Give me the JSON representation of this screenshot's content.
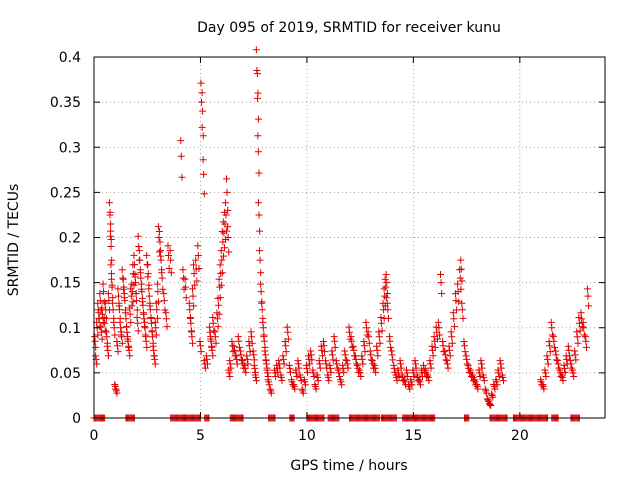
{
  "chart_data": {
    "type": "scatter",
    "title": "Day 095 of 2019, SRMTID for receiver kunu",
    "xlabel": "GPS time / hours",
    "ylabel": "SRMTID / TECUs",
    "xlim": [
      0,
      24
    ],
    "ylim": [
      0,
      0.4
    ],
    "xticks": [
      0,
      5,
      10,
      15,
      20
    ],
    "xtick_labels": [
      "0",
      "5",
      "10",
      "15",
      "20"
    ],
    "yticks": [
      0,
      0.05,
      0.1,
      0.15,
      0.2,
      0.25,
      0.3,
      0.35,
      0.4
    ],
    "ytick_labels": [
      "0",
      "0.05",
      "0.1",
      "0.15",
      "0.2",
      "0.25",
      "0.3",
      "0.35",
      "0.4"
    ],
    "grid": true,
    "marker": "plus",
    "color": "#e00000",
    "series": [
      {
        "name": "SRMTID",
        "points": [
          [
            0.05,
            0.085
          ],
          [
            0.1,
            0.065
          ],
          [
            0.15,
            0.1
          ],
          [
            0.2,
            0.12
          ],
          [
            0.25,
            0.11
          ],
          [
            0.3,
            0.13
          ],
          [
            0.35,
            0.095
          ],
          [
            0.4,
            0.115
          ],
          [
            0.45,
            0.14
          ],
          [
            0.5,
            0.105
          ],
          [
            0.55,
            0.12
          ],
          [
            0.6,
            0.09
          ],
          [
            0.65,
            0.075
          ],
          [
            0.7,
            0.13
          ],
          [
            0.75,
            0.225
          ],
          [
            0.78,
            0.215
          ],
          [
            0.8,
            0.19
          ],
          [
            0.82,
            0.16
          ],
          [
            0.85,
            0.145
          ],
          [
            0.9,
            0.12
          ],
          [
            0.95,
            0.1
          ],
          [
            1.0,
            0.035
          ],
          [
            1.05,
            0.03
          ],
          [
            1.1,
            0.08
          ],
          [
            1.15,
            0.135
          ],
          [
            1.2,
            0.12
          ],
          [
            1.25,
            0.1
          ],
          [
            1.3,
            0.09
          ],
          [
            1.35,
            0.155
          ],
          [
            1.4,
            0.145
          ],
          [
            1.45,
            0.13
          ],
          [
            1.5,
            0.11
          ],
          [
            1.55,
            0.095
          ],
          [
            1.6,
            0.085
          ],
          [
            1.65,
            0.075
          ],
          [
            1.7,
            0.115
          ],
          [
            1.75,
            0.135
          ],
          [
            1.8,
            0.14
          ],
          [
            1.85,
            0.16
          ],
          [
            1.9,
            0.17
          ],
          [
            1.95,
            0.15
          ],
          [
            2.0,
            0.13
          ],
          [
            2.05,
            0.105
          ],
          [
            2.1,
            0.19
          ],
          [
            2.15,
            0.175
          ],
          [
            2.2,
            0.155
          ],
          [
            2.25,
            0.14
          ],
          [
            2.3,
            0.125
          ],
          [
            2.35,
            0.11
          ],
          [
            2.4,
            0.1
          ],
          [
            2.45,
            0.085
          ],
          [
            2.5,
            0.17
          ],
          [
            2.55,
            0.16
          ],
          [
            2.6,
            0.135
          ],
          [
            2.65,
            0.12
          ],
          [
            2.7,
            0.105
          ],
          [
            2.75,
            0.09
          ],
          [
            2.8,
            0.075
          ],
          [
            2.85,
            0.065
          ],
          [
            2.9,
            0.1
          ],
          [
            2.95,
            0.12
          ],
          [
            3.0,
            0.14
          ],
          [
            3.05,
            0.2
          ],
          [
            3.1,
            0.195
          ],
          [
            3.15,
            0.175
          ],
          [
            3.2,
            0.155
          ],
          [
            3.3,
            0.13
          ],
          [
            3.4,
            0.11
          ],
          [
            3.5,
            0.18
          ],
          [
            3.6,
            0.175
          ],
          [
            4.1,
            0.29
          ],
          [
            4.2,
            0.155
          ],
          [
            4.3,
            0.145
          ],
          [
            4.5,
            0.12
          ],
          [
            4.55,
            0.105
          ],
          [
            4.6,
            0.09
          ],
          [
            4.65,
            0.135
          ],
          [
            4.7,
            0.16
          ],
          [
            4.8,
            0.165
          ],
          [
            4.9,
            0.18
          ],
          [
            5.0,
            0.08
          ],
          [
            5.05,
            0.35
          ],
          [
            5.1,
            0.34
          ],
          [
            5.15,
            0.27
          ],
          [
            5.2,
            0.06
          ],
          [
            5.3,
            0.065
          ],
          [
            5.45,
            0.095
          ],
          [
            5.5,
            0.085
          ],
          [
            5.55,
            0.075
          ],
          [
            5.6,
            0.105
          ],
          [
            5.7,
            0.09
          ],
          [
            5.8,
            0.11
          ],
          [
            5.85,
            0.125
          ],
          [
            5.9,
            0.145
          ],
          [
            5.95,
            0.16
          ],
          [
            6.0,
            0.175
          ],
          [
            6.05,
            0.195
          ],
          [
            6.1,
            0.205
          ],
          [
            6.15,
            0.215
          ],
          [
            6.2,
            0.225
          ],
          [
            6.25,
            0.25
          ],
          [
            6.3,
            0.2
          ],
          [
            6.35,
            0.05
          ],
          [
            6.4,
            0.06
          ],
          [
            6.5,
            0.08
          ],
          [
            6.6,
            0.075
          ],
          [
            6.7,
            0.065
          ],
          [
            6.8,
            0.085
          ],
          [
            6.9,
            0.07
          ],
          [
            7.0,
            0.06
          ],
          [
            7.1,
            0.055
          ],
          [
            7.2,
            0.065
          ],
          [
            7.3,
            0.08
          ],
          [
            7.4,
            0.09
          ],
          [
            7.5,
            0.07
          ],
          [
            7.55,
            0.055
          ],
          [
            7.6,
            0.045
          ],
          [
            7.65,
            0.385
          ],
          [
            7.7,
            0.36
          ],
          [
            7.72,
            0.295
          ],
          [
            7.75,
            0.225
          ],
          [
            7.8,
            0.175
          ],
          [
            7.85,
            0.14
          ],
          [
            7.9,
            0.12
          ],
          [
            7.95,
            0.1
          ],
          [
            8.0,
            0.085
          ],
          [
            8.05,
            0.07
          ],
          [
            8.1,
            0.06
          ],
          [
            8.15,
            0.05
          ],
          [
            8.2,
            0.04
          ],
          [
            8.3,
            0.03
          ],
          [
            8.5,
            0.05
          ],
          [
            8.6,
            0.055
          ],
          [
            8.7,
            0.06
          ],
          [
            8.8,
            0.045
          ],
          [
            8.9,
            0.065
          ],
          [
            9.0,
            0.08
          ],
          [
            9.1,
            0.095
          ],
          [
            9.2,
            0.055
          ],
          [
            9.3,
            0.04
          ],
          [
            9.4,
            0.035
          ],
          [
            9.5,
            0.05
          ],
          [
            9.6,
            0.06
          ],
          [
            9.7,
            0.045
          ],
          [
            9.8,
            0.03
          ],
          [
            9.9,
            0.04
          ],
          [
            10.0,
            0.055
          ],
          [
            10.1,
            0.065
          ],
          [
            10.2,
            0.07
          ],
          [
            10.3,
            0.05
          ],
          [
            10.4,
            0.035
          ],
          [
            10.5,
            0.045
          ],
          [
            10.6,
            0.06
          ],
          [
            10.7,
            0.075
          ],
          [
            10.8,
            0.08
          ],
          [
            10.9,
            0.06
          ],
          [
            11.0,
            0.045
          ],
          [
            11.1,
            0.055
          ],
          [
            11.2,
            0.07
          ],
          [
            11.3,
            0.085
          ],
          [
            11.4,
            0.06
          ],
          [
            11.5,
            0.05
          ],
          [
            11.6,
            0.04
          ],
          [
            11.7,
            0.055
          ],
          [
            11.8,
            0.07
          ],
          [
            11.9,
            0.06
          ],
          [
            12.0,
            0.095
          ],
          [
            12.1,
            0.085
          ],
          [
            12.2,
            0.075
          ],
          [
            12.3,
            0.065
          ],
          [
            12.4,
            0.055
          ],
          [
            12.5,
            0.05
          ],
          [
            12.6,
            0.065
          ],
          [
            12.7,
            0.08
          ],
          [
            12.8,
            0.1
          ],
          [
            12.9,
            0.09
          ],
          [
            13.0,
            0.07
          ],
          [
            13.1,
            0.06
          ],
          [
            13.2,
            0.055
          ],
          [
            13.3,
            0.075
          ],
          [
            13.4,
            0.09
          ],
          [
            13.5,
            0.105
          ],
          [
            13.6,
            0.12
          ],
          [
            13.65,
            0.135
          ],
          [
            13.7,
            0.145
          ],
          [
            13.75,
            0.15
          ],
          [
            13.8,
            0.12
          ],
          [
            13.9,
            0.085
          ],
          [
            14.0,
            0.07
          ],
          [
            14.1,
            0.055
          ],
          [
            14.2,
            0.045
          ],
          [
            14.3,
            0.05
          ],
          [
            14.4,
            0.06
          ],
          [
            14.5,
            0.045
          ],
          [
            14.6,
            0.04
          ],
          [
            14.7,
            0.05
          ],
          [
            14.8,
            0.035
          ],
          [
            14.9,
            0.04
          ],
          [
            15.0,
            0.05
          ],
          [
            15.1,
            0.06
          ],
          [
            15.2,
            0.045
          ],
          [
            15.3,
            0.04
          ],
          [
            15.4,
            0.05
          ],
          [
            15.5,
            0.055
          ],
          [
            15.6,
            0.05
          ],
          [
            15.7,
            0.045
          ],
          [
            15.8,
            0.06
          ],
          [
            15.9,
            0.075
          ],
          [
            16.0,
            0.085
          ],
          [
            16.1,
            0.095
          ],
          [
            16.2,
            0.1
          ],
          [
            16.3,
            0.15
          ],
          [
            16.4,
            0.08
          ],
          [
            16.5,
            0.07
          ],
          [
            16.6,
            0.06
          ],
          [
            16.7,
            0.075
          ],
          [
            16.8,
            0.09
          ],
          [
            16.9,
            0.11
          ],
          [
            17.0,
            0.13
          ],
          [
            17.1,
            0.14
          ],
          [
            17.2,
            0.155
          ],
          [
            17.25,
            0.165
          ],
          [
            17.3,
            0.12
          ],
          [
            17.4,
            0.08
          ],
          [
            17.5,
            0.065
          ],
          [
            17.6,
            0.055
          ],
          [
            17.7,
            0.05
          ],
          [
            17.8,
            0.045
          ],
          [
            17.9,
            0.04
          ],
          [
            18.0,
            0.035
          ],
          [
            18.1,
            0.05
          ],
          [
            18.2,
            0.06
          ],
          [
            18.3,
            0.045
          ],
          [
            18.4,
            0.03
          ],
          [
            18.5,
            0.02
          ],
          [
            18.6,
            0.015
          ],
          [
            18.7,
            0.025
          ],
          [
            18.8,
            0.035
          ],
          [
            18.9,
            0.04
          ],
          [
            19.0,
            0.05
          ],
          [
            19.1,
            0.06
          ],
          [
            19.2,
            0.045
          ],
          [
            21.0,
            0.04
          ],
          [
            21.1,
            0.035
          ],
          [
            21.2,
            0.05
          ],
          [
            21.3,
            0.065
          ],
          [
            21.4,
            0.08
          ],
          [
            21.5,
            0.1
          ],
          [
            21.6,
            0.085
          ],
          [
            21.7,
            0.07
          ],
          [
            21.8,
            0.06
          ],
          [
            21.9,
            0.05
          ],
          [
            22.0,
            0.045
          ],
          [
            22.1,
            0.055
          ],
          [
            22.2,
            0.065
          ],
          [
            22.3,
            0.075
          ],
          [
            22.4,
            0.06
          ],
          [
            22.5,
            0.05
          ],
          [
            22.6,
            0.07
          ],
          [
            22.7,
            0.09
          ],
          [
            22.8,
            0.105
          ],
          [
            22.9,
            0.11
          ],
          [
            23.0,
            0.1
          ],
          [
            23.1,
            0.085
          ],
          [
            23.2,
            0.135
          ]
        ],
        "zero_segments": [
          [
            0.0,
            0.5
          ],
          [
            1.5,
            1.9
          ],
          [
            3.6,
            5.0
          ],
          [
            5.2,
            5.4
          ],
          [
            6.4,
            7.0
          ],
          [
            8.2,
            8.5
          ],
          [
            9.2,
            9.4
          ],
          [
            10.0,
            10.8
          ],
          [
            11.0,
            11.5
          ],
          [
            12.0,
            13.4
          ],
          [
            13.5,
            14.2
          ],
          [
            14.5,
            16.0
          ],
          [
            17.4,
            17.6
          ],
          [
            18.6,
            19.4
          ],
          [
            19.7,
            21.3
          ],
          [
            21.5,
            21.8
          ],
          [
            22.4,
            22.8
          ]
        ]
      }
    ]
  }
}
